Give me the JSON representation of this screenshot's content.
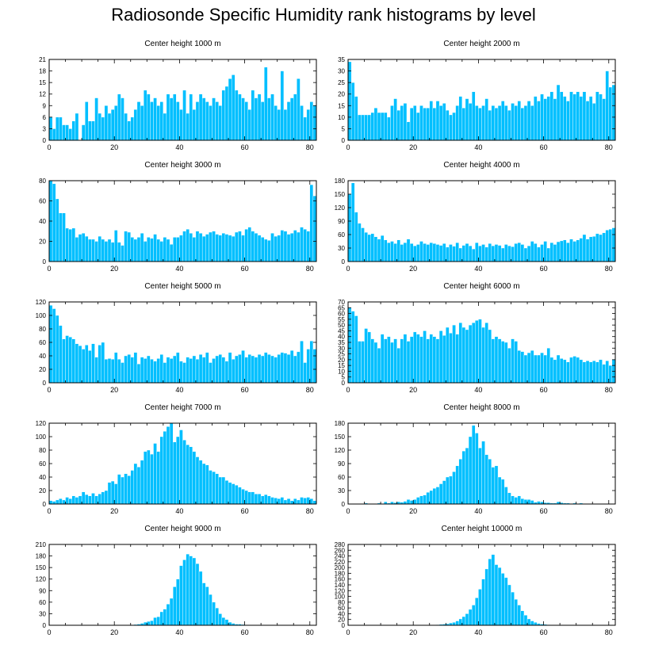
{
  "title": "Radiosonde Specific Humidity rank histograms by level",
  "colors": {
    "bar": "#00bfff",
    "bar_edge": "#ffffff",
    "axis": "#000000"
  },
  "chart_data": [
    {
      "type": "bar",
      "title": "Center height 1000 m",
      "ylim": [
        0,
        21
      ],
      "yticks": [
        0,
        3,
        6,
        9,
        12,
        15,
        18,
        21
      ],
      "xlim": [
        0,
        82
      ],
      "xticks": [
        0,
        20,
        40,
        60,
        80
      ],
      "values": [
        6,
        3,
        6,
        6,
        4,
        4,
        3,
        5,
        7,
        0,
        4,
        10,
        5,
        5,
        11,
        7,
        6,
        9,
        7,
        8,
        9,
        12,
        11,
        7,
        5,
        6,
        8,
        10,
        9,
        13,
        12,
        10,
        11,
        9,
        10,
        7,
        12,
        11,
        12,
        10,
        8,
        13,
        7,
        12,
        8,
        10,
        12,
        11,
        10,
        9,
        11,
        10,
        9,
        13,
        14,
        16,
        17,
        13,
        12,
        11,
        10,
        8,
        13,
        11,
        12,
        10,
        19,
        11,
        12,
        9,
        8,
        18,
        8,
        10,
        11,
        12,
        16,
        9,
        6,
        8,
        10,
        9
      ]
    },
    {
      "type": "bar",
      "title": "Center height 2000 m",
      "ylim": [
        0,
        35
      ],
      "yticks": [
        0,
        5,
        10,
        15,
        20,
        25,
        30,
        35
      ],
      "xlim": [
        0,
        82
      ],
      "xticks": [
        0,
        20,
        40,
        60,
        80
      ],
      "values": [
        34,
        25,
        19,
        11,
        11,
        11,
        11,
        12,
        14,
        12,
        12,
        12,
        10,
        15,
        18,
        13,
        15,
        16,
        8,
        14,
        15,
        12,
        15,
        14,
        14,
        17,
        14,
        17,
        15,
        16,
        13,
        11,
        12,
        15,
        19,
        14,
        18,
        16,
        21,
        15,
        14,
        15,
        18,
        13,
        15,
        14,
        15,
        17,
        15,
        13,
        16,
        15,
        17,
        14,
        15,
        17,
        15,
        19,
        17,
        20,
        18,
        19,
        21,
        18,
        24,
        21,
        19,
        17,
        21,
        20,
        21,
        19,
        21,
        17,
        19,
        16,
        21,
        20,
        18,
        30,
        23,
        24
      ]
    },
    {
      "type": "bar",
      "title": "Center height 3000 m",
      "ylim": [
        0,
        80
      ],
      "yticks": [
        0,
        20,
        40,
        60,
        80
      ],
      "xlim": [
        0,
        82
      ],
      "xticks": [
        0,
        20,
        40,
        60,
        80
      ],
      "values": [
        80,
        77,
        62,
        48,
        48,
        33,
        32,
        33,
        24,
        27,
        28,
        25,
        22,
        22,
        20,
        25,
        22,
        20,
        22,
        19,
        31,
        19,
        16,
        30,
        29,
        24,
        22,
        24,
        28,
        20,
        24,
        23,
        27,
        22,
        20,
        24,
        22,
        17,
        24,
        24,
        26,
        30,
        32,
        28,
        24,
        30,
        28,
        25,
        27,
        29,
        30,
        27,
        26,
        28,
        27,
        26,
        25,
        29,
        30,
        26,
        32,
        34,
        30,
        28,
        26,
        24,
        22,
        21,
        28,
        25,
        26,
        31,
        30,
        27,
        28,
        31,
        29,
        34,
        32,
        30,
        76,
        65
      ]
    },
    {
      "type": "bar",
      "title": "Center height 4000 m",
      "ylim": [
        0,
        180
      ],
      "yticks": [
        0,
        30,
        60,
        90,
        120,
        150,
        180
      ],
      "xlim": [
        0,
        82
      ],
      "xticks": [
        0,
        20,
        40,
        60,
        80
      ],
      "values": [
        150,
        175,
        110,
        85,
        75,
        65,
        60,
        62,
        55,
        50,
        58,
        48,
        42,
        45,
        40,
        48,
        38,
        42,
        50,
        40,
        35,
        38,
        45,
        40,
        38,
        42,
        40,
        38,
        36,
        40,
        32,
        38,
        34,
        42,
        30,
        36,
        40,
        35,
        28,
        42,
        35,
        38,
        32,
        40,
        35,
        38,
        36,
        30,
        38,
        35,
        33,
        40,
        42,
        38,
        30,
        35,
        45,
        40,
        32,
        38,
        45,
        30,
        42,
        38,
        44,
        46,
        48,
        42,
        50,
        45,
        48,
        52,
        60,
        50,
        55,
        56,
        62,
        60,
        64,
        70,
        72,
        75
      ]
    },
    {
      "type": "bar",
      "title": "Center height 5000 m",
      "ylim": [
        0,
        120
      ],
      "yticks": [
        0,
        20,
        40,
        60,
        80,
        100,
        120
      ],
      "xlim": [
        0,
        82
      ],
      "xticks": [
        0,
        20,
        40,
        60,
        80
      ],
      "values": [
        115,
        110,
        100,
        85,
        65,
        70,
        68,
        65,
        58,
        55,
        50,
        56,
        48,
        58,
        38,
        56,
        60,
        35,
        36,
        35,
        45,
        35,
        30,
        40,
        42,
        38,
        45,
        28,
        38,
        36,
        40,
        35,
        32,
        36,
        42,
        30,
        38,
        36,
        40,
        45,
        32,
        30,
        38,
        36,
        40,
        35,
        42,
        38,
        45,
        30,
        36,
        40,
        42,
        38,
        32,
        45,
        35,
        40,
        42,
        48,
        38,
        42,
        40,
        38,
        42,
        40,
        45,
        42,
        40,
        38,
        42,
        45,
        44,
        42,
        48,
        40,
        46,
        62,
        30,
        50,
        62,
        50
      ]
    },
    {
      "type": "bar",
      "title": "Center height 6000 m",
      "ylim": [
        0,
        70
      ],
      "yticks": [
        0,
        5,
        10,
        15,
        20,
        25,
        30,
        35,
        40,
        45,
        50,
        55,
        60,
        65,
        70
      ],
      "xlim": [
        0,
        82
      ],
      "xticks": [
        0,
        20,
        40,
        60,
        80
      ],
      "values": [
        65,
        62,
        58,
        36,
        36,
        47,
        44,
        38,
        35,
        30,
        42,
        38,
        40,
        35,
        38,
        30,
        38,
        42,
        36,
        40,
        44,
        42,
        40,
        45,
        38,
        42,
        40,
        38,
        45,
        41,
        48,
        43,
        50,
        42,
        52,
        48,
        46,
        50,
        52,
        54,
        55,
        48,
        52,
        46,
        38,
        40,
        38,
        36,
        35,
        30,
        38,
        36,
        28,
        27,
        24,
        26,
        28,
        24,
        24,
        26,
        24,
        30,
        22,
        20,
        24,
        21,
        20,
        18,
        22,
        23,
        22,
        20,
        18,
        19,
        18,
        19,
        18,
        20,
        16,
        19,
        15,
        20
      ]
    },
    {
      "type": "bar",
      "title": "Center height 7000 m",
      "ylim": [
        0,
        120
      ],
      "yticks": [
        0,
        20,
        40,
        60,
        80,
        100,
        120
      ],
      "xlim": [
        0,
        82
      ],
      "xticks": [
        0,
        20,
        40,
        60,
        80
      ],
      "values": [
        5,
        4,
        6,
        8,
        6,
        10,
        8,
        12,
        10,
        12,
        18,
        14,
        12,
        16,
        12,
        15,
        18,
        20,
        32,
        34,
        30,
        44,
        40,
        45,
        42,
        50,
        60,
        55,
        65,
        78,
        80,
        74,
        90,
        78,
        100,
        108,
        115,
        120,
        92,
        100,
        110,
        95,
        88,
        85,
        78,
        70,
        65,
        60,
        58,
        50,
        48,
        45,
        40,
        40,
        35,
        32,
        30,
        28,
        25,
        22,
        20,
        18,
        18,
        15,
        15,
        12,
        14,
        12,
        10,
        9,
        8,
        10,
        6,
        8,
        5,
        8,
        6,
        10,
        9,
        10,
        8,
        5
      ]
    },
    {
      "type": "bar",
      "title": "Center height 8000 m",
      "ylim": [
        0,
        180
      ],
      "yticks": [
        0,
        30,
        60,
        90,
        120,
        150,
        180
      ],
      "xlim": [
        0,
        82
      ],
      "xticks": [
        0,
        20,
        40,
        60,
        80
      ],
      "values": [
        0,
        0,
        0,
        0,
        0,
        2,
        0,
        0,
        0,
        2,
        0,
        5,
        2,
        5,
        3,
        5,
        4,
        6,
        10,
        8,
        10,
        15,
        18,
        20,
        26,
        30,
        35,
        38,
        45,
        52,
        60,
        62,
        72,
        85,
        100,
        118,
        125,
        150,
        175,
        158,
        125,
        140,
        110,
        100,
        82,
        85,
        60,
        55,
        38,
        25,
        18,
        15,
        18,
        12,
        10,
        10,
        8,
        4,
        6,
        5,
        3,
        3,
        2,
        2,
        5,
        3,
        2,
        2,
        0,
        2,
        0,
        2,
        0,
        0,
        0,
        0,
        0,
        0,
        0,
        0,
        0,
        0
      ]
    },
    {
      "type": "bar",
      "title": "Center height 9000 m",
      "ylim": [
        0,
        210
      ],
      "yticks": [
        0,
        30,
        60,
        90,
        120,
        150,
        180,
        210
      ],
      "xlim": [
        0,
        82
      ],
      "xticks": [
        0,
        20,
        40,
        60,
        80
      ],
      "values": [
        0,
        0,
        0,
        0,
        0,
        0,
        0,
        0,
        0,
        0,
        0,
        0,
        0,
        0,
        0,
        0,
        0,
        0,
        0,
        0,
        0,
        0,
        0,
        0,
        1,
        1,
        2,
        3,
        5,
        8,
        10,
        12,
        20,
        22,
        35,
        42,
        55,
        70,
        100,
        120,
        155,
        170,
        185,
        180,
        175,
        160,
        140,
        110,
        100,
        80,
        60,
        45,
        30,
        20,
        15,
        8,
        5,
        3,
        3,
        2,
        1,
        1,
        0,
        1,
        0,
        0,
        0,
        0,
        0,
        0,
        0,
        0,
        0,
        0,
        0,
        0,
        0,
        0,
        0,
        0,
        0,
        0
      ]
    },
    {
      "type": "bar",
      "title": "Center height 10000 m",
      "ylim": [
        0,
        280
      ],
      "yticks": [
        0,
        20,
        40,
        60,
        80,
        100,
        120,
        140,
        160,
        180,
        200,
        220,
        240,
        260,
        280
      ],
      "xlim": [
        0,
        82
      ],
      "xticks": [
        0,
        20,
        40,
        60,
        80
      ],
      "values": [
        0,
        0,
        0,
        0,
        0,
        0,
        0,
        0,
        0,
        0,
        0,
        0,
        0,
        0,
        0,
        0,
        0,
        0,
        0,
        0,
        0,
        0,
        0,
        0,
        0,
        1,
        1,
        2,
        3,
        4,
        5,
        8,
        10,
        15,
        22,
        30,
        40,
        55,
        70,
        95,
        125,
        160,
        195,
        230,
        245,
        210,
        200,
        180,
        165,
        140,
        115,
        90,
        70,
        50,
        35,
        22,
        15,
        10,
        6,
        4,
        3,
        2,
        1,
        1,
        0,
        0,
        0,
        0,
        0,
        0,
        0,
        0,
        0,
        0,
        0,
        0,
        0,
        0,
        0,
        0,
        0,
        0
      ]
    }
  ]
}
